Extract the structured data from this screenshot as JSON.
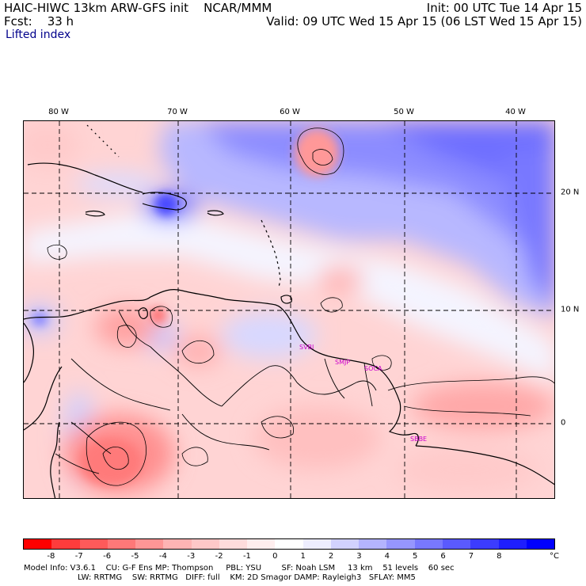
{
  "header": {
    "title": "HAIC-HIWC 13km ARW-GFS init    NCAR/MMM",
    "forecast": "Fcst:    33 h",
    "field": "Lifted index",
    "init": "Init: 00 UTC Tue 14 Apr 15",
    "valid": "Valid: 09 UTC Wed 15 Apr 15 (06 LST Wed 15 Apr 15)"
  },
  "map": {
    "longitude_labels": [
      "80 W",
      "70 W",
      "60 W",
      "50 W",
      "40 W"
    ],
    "latitude_labels": [
      "20 N",
      "10 N",
      "0"
    ],
    "station_labels": [
      "SVBI",
      "SMJP",
      "SOCA",
      "SBBE"
    ],
    "station_color": "#cc00cc",
    "lon_range": [
      -82,
      -35
    ],
    "lat_range": [
      -6.5,
      26
    ]
  },
  "colorbar": {
    "tick_labels": [
      "-8",
      "-7",
      "-6",
      "-5",
      "-4",
      "-3",
      "-2",
      "-1",
      "0",
      "1",
      "2",
      "3",
      "4",
      "5",
      "6",
      "7",
      "8"
    ],
    "unit": "°C",
    "colors": [
      "#ff0000",
      "#ff3c3c",
      "#ff5a5a",
      "#ff7878",
      "#ff9696",
      "#ffb4b4",
      "#ffc8c8",
      "#ffdcdc",
      "#ffeeee",
      "#ffffff",
      "#eeeeff",
      "#d2d2ff",
      "#b4b4ff",
      "#9696ff",
      "#7878ff",
      "#5a5aff",
      "#3c3cff",
      "#1e1eff",
      "#0000ff"
    ]
  },
  "footer": {
    "line1": "Model Info: V3.6.1    CU: G-F Ens MP: Thompson     PBL: YSU        SF: Noah LSM     13 km    51 levels    60 sec",
    "line2": "LW: RRTMG    SW: RRTMG   DIFF: full    KM: 2D Smagor DAMP: Rayleigh3   SFLAY: MM5"
  }
}
